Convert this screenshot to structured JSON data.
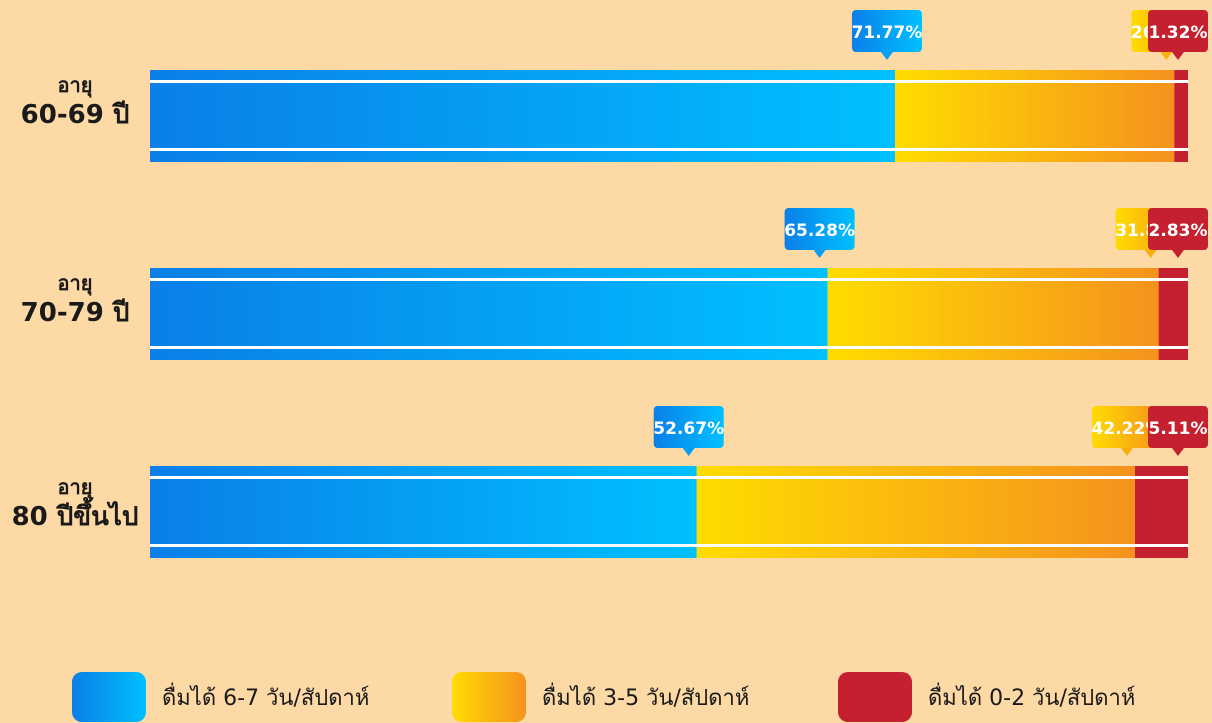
{
  "chart_data": {
    "type": "bar",
    "stacked": true,
    "orientation": "horizontal",
    "categories": [
      {
        "line1": "อายุ",
        "line2": "60-69 ปี"
      },
      {
        "line1": "อายุ",
        "line2": "70-79 ปี"
      },
      {
        "line1": "อายุ",
        "line2": "80 ปีขึ้นไป"
      }
    ],
    "series": [
      {
        "name": "ดื่มได้ 6-7 วัน/สัปดาห์",
        "values": [
          71.77,
          65.28,
          52.67
        ],
        "color_start": "#0a7fe8",
        "color_end": "#00c0ff"
      },
      {
        "name": "ดื่มได้ 3-5 วัน/สัปดาห์",
        "values": [
          26.91,
          31.89,
          42.22
        ],
        "color_start": "#ffdc00",
        "color_end": "#f5921e"
      },
      {
        "name": "ดื่มได้ 0-2 วัน/สัปดาห์",
        "values": [
          1.32,
          2.83,
          5.11
        ],
        "color_start": "#c4202f",
        "color_end": "#c4202f"
      }
    ],
    "data_labels": [
      [
        "71.77%",
        "26.91%",
        "1.32%"
      ],
      [
        "65.28%",
        "31.89%",
        "2.83%"
      ],
      [
        "52.67%",
        "42.22%",
        "5.11%"
      ]
    ],
    "xlim": [
      0,
      100
    ],
    "legend": "bottom",
    "grid": false
  }
}
